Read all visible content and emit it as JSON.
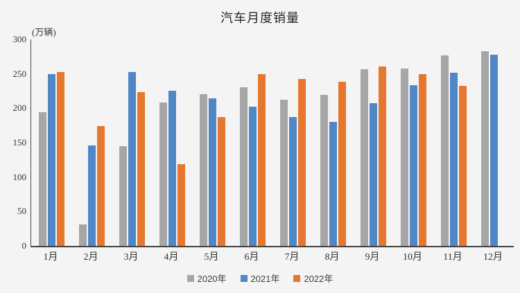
{
  "title": "汽车月度销量",
  "chart_data": {
    "type": "bar",
    "title": "汽车月度销量",
    "ylabel": "(万辆)",
    "xlabel": "",
    "ylim": [
      0,
      300
    ],
    "yticks": [
      0,
      50,
      100,
      150,
      200,
      250,
      300
    ],
    "grid": false,
    "legend_position": "bottom",
    "categories": [
      "1月",
      "2月",
      "3月",
      "4月",
      "5月",
      "6月",
      "7月",
      "8月",
      "9月",
      "10月",
      "11月",
      "12月"
    ],
    "series": [
      {
        "name": "2020年",
        "color": "#a6a6a6",
        "values": [
          194,
          31,
          145,
          208,
          220,
          231,
          212,
          219,
          257,
          258,
          277,
          283
        ]
      },
      {
        "name": "2021年",
        "color": "#4f87c7",
        "values": [
          250,
          146,
          253,
          226,
          214,
          202,
          187,
          180,
          207,
          234,
          252,
          278
        ]
      },
      {
        "name": "2022年",
        "color": "#e5772e",
        "values": [
          253,
          174,
          224,
          119,
          187,
          250,
          243,
          239,
          261,
          250,
          233,
          null
        ]
      }
    ]
  },
  "colors": {
    "background": "#f4f4f4",
    "axis": "#404040",
    "text": "#333333"
  }
}
